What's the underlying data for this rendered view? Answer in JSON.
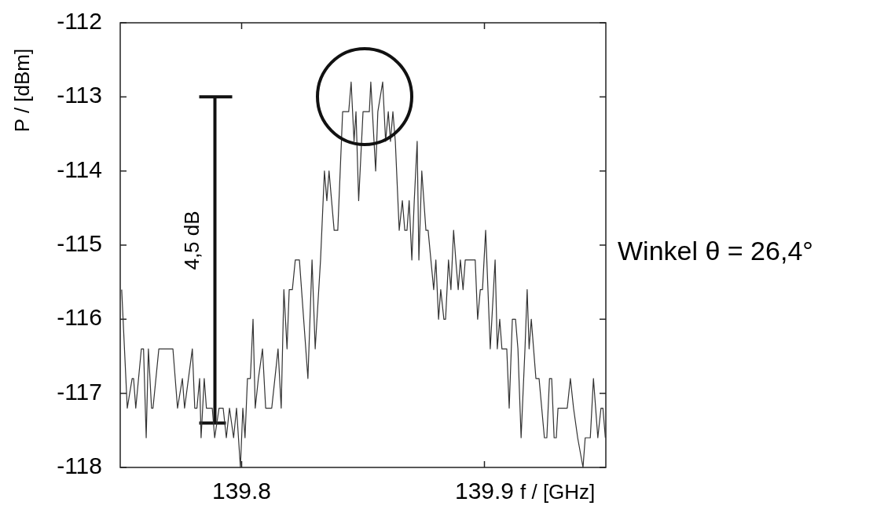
{
  "chart_data": {
    "type": "line",
    "xlabel": "f / [GHz]",
    "ylabel": "P / [dBm]",
    "xlim": [
      139.75,
      139.95
    ],
    "xticks": [
      139.8,
      139.9
    ],
    "ylim": [
      -118,
      -112
    ],
    "yticks": [
      -118,
      -117,
      -116,
      -115,
      -114,
      -113,
      -112
    ],
    "grid": false,
    "marker": "none",
    "line_style": "solid",
    "annotations": [
      "4,5 dB",
      "Winkel θ = 26,4°"
    ],
    "series": [
      {
        "color": "#111111",
        "x": [
          139.789,
          139.789
        ],
        "values": [
          -113,
          -117.4
        ]
      },
      {
        "color": "#333333",
        "x": [
          139.7506,
          139.7529,
          139.7549,
          139.7555,
          139.7564,
          139.7587,
          139.7596,
          139.7607,
          139.7616,
          139.7629,
          139.7635,
          139.7659,
          139.7717,
          139.7736,
          139.7756,
          139.7765,
          139.7797,
          139.7807,
          139.7816,
          139.7827,
          139.7833,
          139.7846,
          139.7855,
          139.7879,
          139.7889,
          139.7907,
          139.7924,
          139.7937,
          139.795,
          139.7967,
          139.7979,
          139.7995,
          139.8005,
          139.8014,
          139.8024,
          139.8036,
          139.8047,
          139.8056,
          139.8069,
          139.8086,
          139.8099,
          139.8124,
          139.815,
          139.8163,
          139.8174,
          139.8187,
          139.8196,
          139.8209,
          139.8221,
          139.8238,
          139.8273,
          139.829,
          139.8303,
          139.8325,
          139.8341,
          139.8351,
          139.836,
          139.8381,
          139.8396,
          139.8416,
          139.8441,
          139.8451,
          139.8463,
          139.8471,
          139.8482,
          139.85,
          139.8526,
          139.8532,
          139.8552,
          139.8561,
          139.8581,
          139.8593,
          139.8604,
          139.8613,
          139.8623,
          139.8633,
          139.8649,
          139.8662,
          139.8672,
          139.8681,
          139.869,
          139.8701,
          139.8711,
          139.8723,
          139.873,
          139.8742,
          139.8759,
          139.8768,
          139.8791,
          139.88,
          139.8811,
          139.882,
          139.8833,
          139.884,
          139.8852,
          139.8862,
          139.8873,
          139.8882,
          139.8892,
          139.8901,
          139.8912,
          139.8921,
          139.8962,
          139.8972,
          139.8983,
          139.8992,
          139.9005,
          139.9024,
          139.9044,
          139.9053,
          139.9063,
          139.9072,
          139.9092,
          139.9102,
          139.9115,
          139.9128,
          139.9138,
          139.9151,
          139.9167,
          139.9176,
          139.9184,
          139.9193,
          139.9212,
          139.9225,
          139.9247,
          139.9257,
          139.9268,
          139.9277,
          139.9287,
          139.9296,
          139.9303,
          139.9341,
          139.9354,
          139.9367,
          139.9384,
          139.9406,
          139.9415,
          139.9436,
          139.9449,
          139.9467,
          139.948,
          139.9488,
          139.9498
        ],
        "values": [
          -115.6,
          -117.2,
          -116.8,
          -116.8,
          -117.2,
          -116.4,
          -116.4,
          -117.6,
          -116.4,
          -117.2,
          -117.2,
          -116.4,
          -116.4,
          -117.2,
          -116.8,
          -117.2,
          -116.4,
          -117.2,
          -117.2,
          -116.8,
          -117.6,
          -116.8,
          -117.2,
          -117.2,
          -117.6,
          -117.2,
          -117.2,
          -117.6,
          -117.2,
          -117.6,
          -117.2,
          -118,
          -117.2,
          -117.6,
          -116.8,
          -116.8,
          -116,
          -117.2,
          -116.8,
          -116.4,
          -117.2,
          -117.2,
          -116.4,
          -117.2,
          -115.6,
          -116.4,
          -115.6,
          -115.6,
          -115.2,
          -115.2,
          -116.8,
          -115.2,
          -116.4,
          -115.2,
          -114,
          -114.4,
          -114,
          -114.8,
          -114.8,
          -113.2,
          -113.2,
          -112.8,
          -113.6,
          -113.2,
          -114.4,
          -113.2,
          -113.2,
          -112.8,
          -114,
          -113.2,
          -112.8,
          -113.6,
          -113.2,
          -113.6,
          -113.2,
          -113.6,
          -114.8,
          -114.4,
          -114.8,
          -114.8,
          -114.4,
          -115.2,
          -114.4,
          -113.6,
          -115.2,
          -114,
          -114.8,
          -114.8,
          -115.6,
          -115.2,
          -116,
          -115.6,
          -116,
          -116,
          -115.2,
          -115.6,
          -114.8,
          -115.2,
          -115.6,
          -115.2,
          -115.6,
          -115.2,
          -115.2,
          -116,
          -115.6,
          -115.6,
          -114.8,
          -116.4,
          -115.2,
          -116.4,
          -116,
          -116.4,
          -116.4,
          -117.2,
          -116,
          -116,
          -116.4,
          -117.6,
          -116.4,
          -115.6,
          -116.4,
          -116,
          -116.8,
          -116.8,
          -117.6,
          -117.6,
          -116.8,
          -116.8,
          -117.6,
          -117.6,
          -117.2,
          -117.2,
          -116.8,
          -117.2,
          -117.6,
          -118,
          -117.6,
          -117.6,
          -116.8,
          -117.6,
          -117.2,
          -117.2,
          -117.6
        ]
      }
    ]
  }
}
